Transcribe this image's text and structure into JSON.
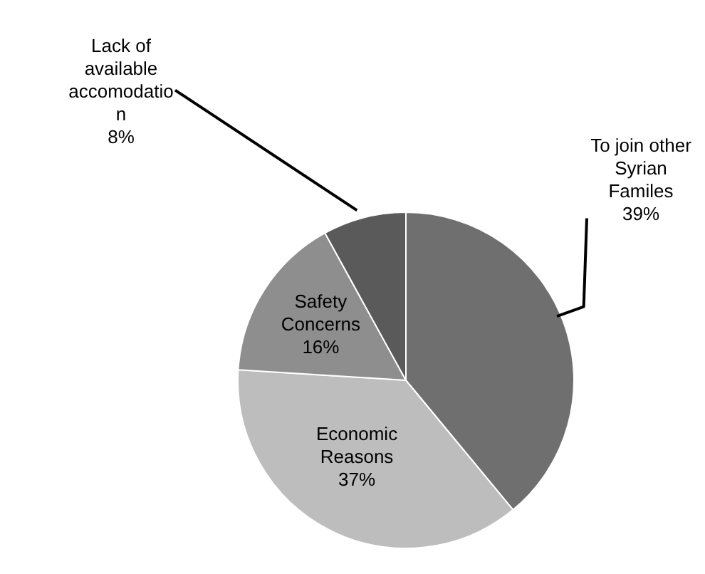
{
  "chart_data": {
    "type": "pie",
    "categories": [
      "To join other Syrian Familes",
      "Economic Reasons",
      "Safety Concerns",
      "Lack of available accomodation"
    ],
    "values": [
      39,
      37,
      16,
      8
    ],
    "value_labels": [
      "39%",
      "37%",
      "16%",
      "8%"
    ],
    "colors": [
      "#6f6f6f",
      "#bdbdbd",
      "#8e8e8e",
      "#5a5a5a"
    ],
    "legend": false
  }
}
